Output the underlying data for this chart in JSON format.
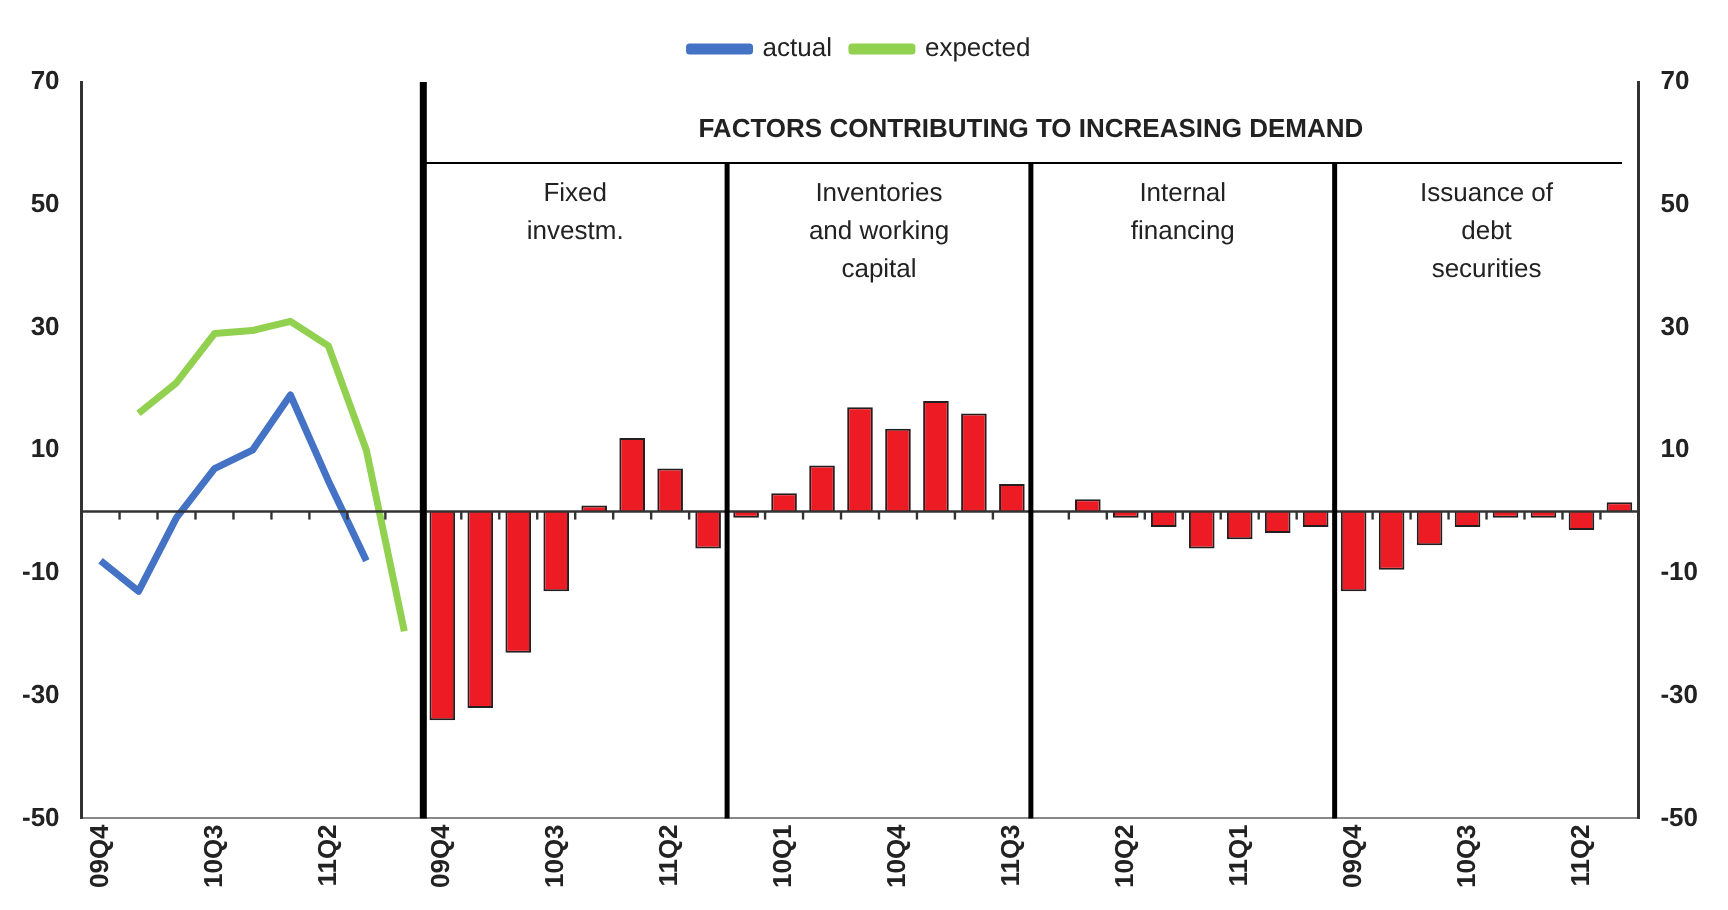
{
  "chart_data": {
    "type": "bar",
    "categories": [
      "09Q4",
      null,
      null,
      "10Q3",
      null,
      null,
      "11Q2",
      null,
      null,
      "09Q4",
      null,
      null,
      "10Q3",
      null,
      null,
      "11Q2",
      null,
      null,
      "10Q1",
      null,
      null,
      "10Q4",
      null,
      null,
      "11Q3",
      null,
      null,
      "10Q2",
      null,
      null,
      "11Q1",
      null,
      null,
      "09Q4",
      null,
      null,
      "10Q3",
      null,
      null,
      "11Q2",
      null
    ],
    "series": [
      {
        "name": "actual",
        "type": "line",
        "color": "#4472c4",
        "values": [
          -8,
          -13,
          -1,
          7,
          10,
          19,
          5,
          -8,
          null,
          null,
          null,
          null,
          null,
          null,
          null,
          null,
          null,
          null,
          null,
          null,
          null,
          null,
          null,
          null,
          null,
          null,
          null,
          null,
          null,
          null,
          null,
          null,
          null,
          null,
          null,
          null,
          null,
          null,
          null,
          null,
          null
        ]
      },
      {
        "name": "expected",
        "type": "line",
        "color": "#92d050",
        "values": [
          null,
          16,
          21,
          29,
          29.5,
          31,
          27,
          10,
          -19.5,
          null,
          null,
          null,
          null,
          null,
          null,
          null,
          null,
          null,
          null,
          null,
          null,
          null,
          null,
          null,
          null,
          null,
          null,
          null,
          null,
          null,
          null,
          null,
          null,
          null,
          null,
          null,
          null,
          null,
          null,
          null,
          null
        ]
      },
      {
        "color": "#ed1c24",
        "values": [
          null,
          null,
          null,
          null,
          null,
          null,
          null,
          null,
          null,
          -34,
          -32,
          -23,
          -13,
          1,
          12,
          7,
          -6,
          -1,
          3,
          7.5,
          17,
          13.5,
          18,
          16,
          4.5,
          0,
          2,
          -1,
          -2.5,
          -6,
          -4.5,
          -3.5,
          -2.5,
          -13,
          -9.5,
          -5.5,
          -2.5,
          -1,
          -1,
          -3,
          1.5
        ]
      }
    ],
    "ylim": [
      -50,
      70
    ],
    "yticks": [
      -50,
      -30,
      -10,
      10,
      30,
      50,
      70
    ],
    "y2lim": [
      -50,
      70
    ],
    "y2ticks": [
      -50,
      -30,
      -10,
      10,
      30,
      50,
      70
    ],
    "ref_lines": [
      {
        "axis": "y",
        "value": 0
      }
    ],
    "annotations": [
      "FACTORS CONTRIBUTING TO INCREASING DEMAND",
      "Fixed\ninvestm.",
      "Inventories\nand working\ncapital",
      "Internal\nfinancing",
      "Issuance of\ndebt\nsecurities"
    ],
    "legend": "top",
    "grid": false
  }
}
